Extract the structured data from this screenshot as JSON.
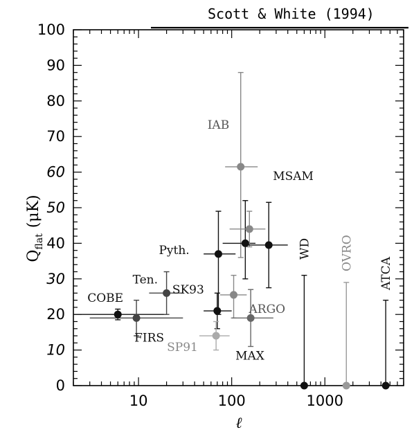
{
  "chart_data": {
    "type": "scatter",
    "title": "Scott & White (1994)",
    "xlabel": "ℓ",
    "ylabel_main": "Q",
    "ylabel_sub": "flat",
    "ylabel_unit": "(μK)",
    "x_scale": "log",
    "xlim": [
      2,
      7000
    ],
    "ylim": [
      0,
      100
    ],
    "x_ticks": [
      {
        "value": 10,
        "label": "10"
      },
      {
        "value": 100,
        "label": "100"
      },
      {
        "value": 1000,
        "label": "1000"
      }
    ],
    "y_ticks": [
      {
        "value": 0,
        "label": "0",
        "italic": false
      },
      {
        "value": 10,
        "label": "10",
        "italic": true
      },
      {
        "value": 20,
        "label": "20",
        "italic": false
      },
      {
        "value": 30,
        "label": "30",
        "italic": true
      },
      {
        "value": 40,
        "label": "40",
        "italic": false
      },
      {
        "value": 50,
        "label": "50",
        "italic": true
      },
      {
        "value": 60,
        "label": "60",
        "italic": true
      },
      {
        "value": 70,
        "label": "70",
        "italic": false
      },
      {
        "value": 80,
        "label": "80",
        "italic": false
      },
      {
        "value": 90,
        "label": "90",
        "italic": false
      },
      {
        "value": 100,
        "label": "100",
        "italic": false
      }
    ],
    "points": [
      {
        "label": "COBE",
        "x": 6,
        "y": 20,
        "xlo": 2,
        "xhi": 20,
        "ylo": 18.5,
        "yhi": 21.5,
        "color": "#111111"
      },
      {
        "label": "FIRS",
        "x": 9.5,
        "y": 19,
        "xlo": 3,
        "xhi": 30,
        "ylo": 14,
        "yhi": 24,
        "color": "#444444"
      },
      {
        "label": "Ten.",
        "x": 20,
        "y": 26,
        "xlo": 13,
        "xhi": 30,
        "ylo": 20,
        "yhi": 32,
        "color": "#444444"
      },
      {
        "label": "SK93",
        "x": 70,
        "y": 21,
        "xlo": 50,
        "xhi": 100,
        "ylo": 16,
        "yhi": 26,
        "color": "#111111"
      },
      {
        "label": "SP91",
        "x": 68,
        "y": 14,
        "xlo": 45,
        "xhi": 95,
        "ylo": 10,
        "yhi": 18,
        "color": "#aaaaaa"
      },
      {
        "label": "Pyth.",
        "x": 72,
        "y": 37,
        "xlo": 50,
        "xhi": 110,
        "ylo": 20,
        "yhi": 49,
        "color": "#111111"
      },
      {
        "label": "ARGO",
        "x": 105,
        "y": 25.5,
        "xlo": 75,
        "xhi": 145,
        "ylo": 19,
        "yhi": 31,
        "color": "#888888"
      },
      {
        "label": "IAB",
        "x": 125,
        "y": 61.5,
        "xlo": 85,
        "xhi": 190,
        "ylo": 36,
        "yhi": 88,
        "color": "#888888"
      },
      {
        "label": "",
        "x": 140,
        "y": 40,
        "xlo": 80,
        "xhi": 180,
        "ylo": 30,
        "yhi": 52,
        "color": "#111111"
      },
      {
        "label": "",
        "x": 155,
        "y": 44,
        "xlo": 95,
        "xhi": 230,
        "ylo": 39,
        "yhi": 49,
        "color": "#888888"
      },
      {
        "label": "MAX",
        "x": 160,
        "y": 19,
        "xlo": 100,
        "xhi": 280,
        "ylo": 11,
        "yhi": 27,
        "color": "#666666"
      },
      {
        "label": "MSAM",
        "x": 250,
        "y": 39.5,
        "xlo": 150,
        "xhi": 400,
        "ylo": 27.5,
        "yhi": 51.5,
        "color": "#111111"
      },
      {
        "label": "WD",
        "x": 600,
        "y": 0,
        "xlo": 600,
        "xhi": 600,
        "ylo": 0,
        "yhi": 31,
        "color": "#111111"
      },
      {
        "label": "OVRO",
        "x": 1700,
        "y": 0,
        "xlo": 1700,
        "xhi": 1700,
        "ylo": 0,
        "yhi": 29,
        "color": "#999999"
      },
      {
        "label": "ATCA",
        "x": 4500,
        "y": 0,
        "xlo": 4500,
        "xhi": 4500,
        "ylo": 0,
        "yhi": 24,
        "color": "#111111"
      }
    ]
  }
}
